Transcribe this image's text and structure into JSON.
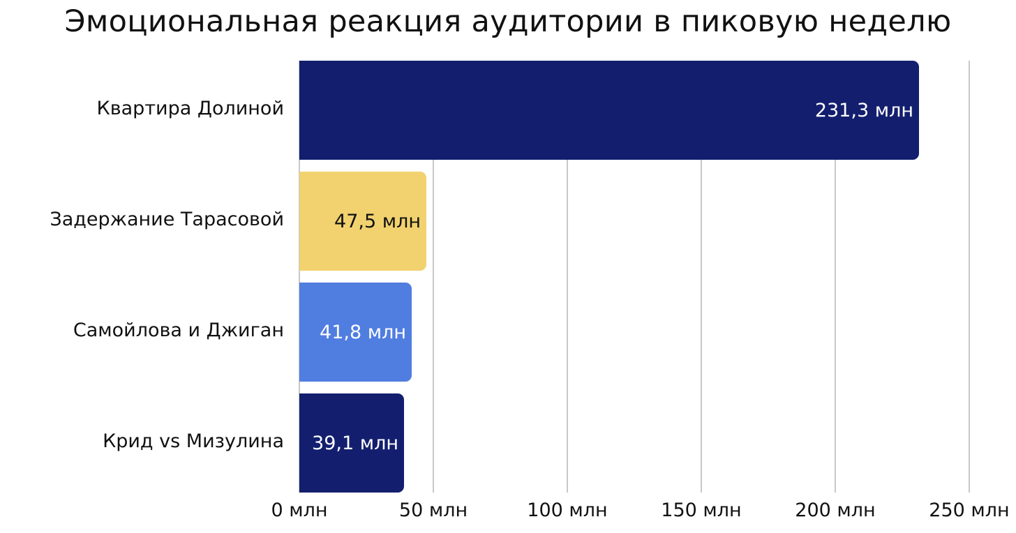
{
  "title": "Эмоциональная реакция аудитории в пиковую неделю",
  "colors": {
    "navy": "#131f6e",
    "yellow": "#f2d26f",
    "blue": "#507de0",
    "grid": "#c8c8c8",
    "text_dark": "#111111",
    "text_light": "#ffffff"
  },
  "bars": [
    {
      "category": "Квартира Долиной",
      "value": 231.3,
      "label": "231,3 млн",
      "color": "#131f6e",
      "label_color": "#ffffff"
    },
    {
      "category": "Задержание Тарасовой",
      "value": 47.5,
      "label": "47,5 млн",
      "color": "#f2d26f",
      "label_color": "#111111"
    },
    {
      "category": "Самойлова и Джиган",
      "value": 41.8,
      "label": "41,8 млн",
      "color": "#507de0",
      "label_color": "#ffffff"
    },
    {
      "category": "Крид vs Мизулина",
      "value": 39.1,
      "label": "39,1 млн",
      "color": "#131f6e",
      "label_color": "#ffffff"
    }
  ],
  "x_axis": {
    "ticks": [
      {
        "value": 0,
        "label": "0 млн"
      },
      {
        "value": 50,
        "label": "50 млн"
      },
      {
        "value": 100,
        "label": "100 млн"
      },
      {
        "value": 150,
        "label": "150 млн"
      },
      {
        "value": 200,
        "label": "200 млн"
      },
      {
        "value": 250,
        "label": "250 млн"
      }
    ]
  },
  "chart_data": {
    "type": "bar",
    "orientation": "horizontal",
    "title": "Эмоциональная реакция аудитории в пиковую неделю",
    "categories": [
      "Квартира Долиной",
      "Задержание Тарасовой",
      "Самойлова и Джиган",
      "Крид vs Мизулина"
    ],
    "values": [
      231.3,
      47.5,
      41.8,
      39.1
    ],
    "data_labels": [
      "231,3 млн",
      "47,5 млн",
      "41,8 млн",
      "39,1 млн"
    ],
    "bar_colors": [
      "#131f6e",
      "#f2d26f",
      "#507de0",
      "#131f6e"
    ],
    "xlabel": "",
    "ylabel": "",
    "xlim": [
      0,
      250
    ],
    "x_tick_labels": [
      "0 млн",
      "50 млн",
      "100 млн",
      "150 млн",
      "200 млн",
      "250 млн"
    ],
    "grid": "vertical",
    "legend": "none"
  }
}
